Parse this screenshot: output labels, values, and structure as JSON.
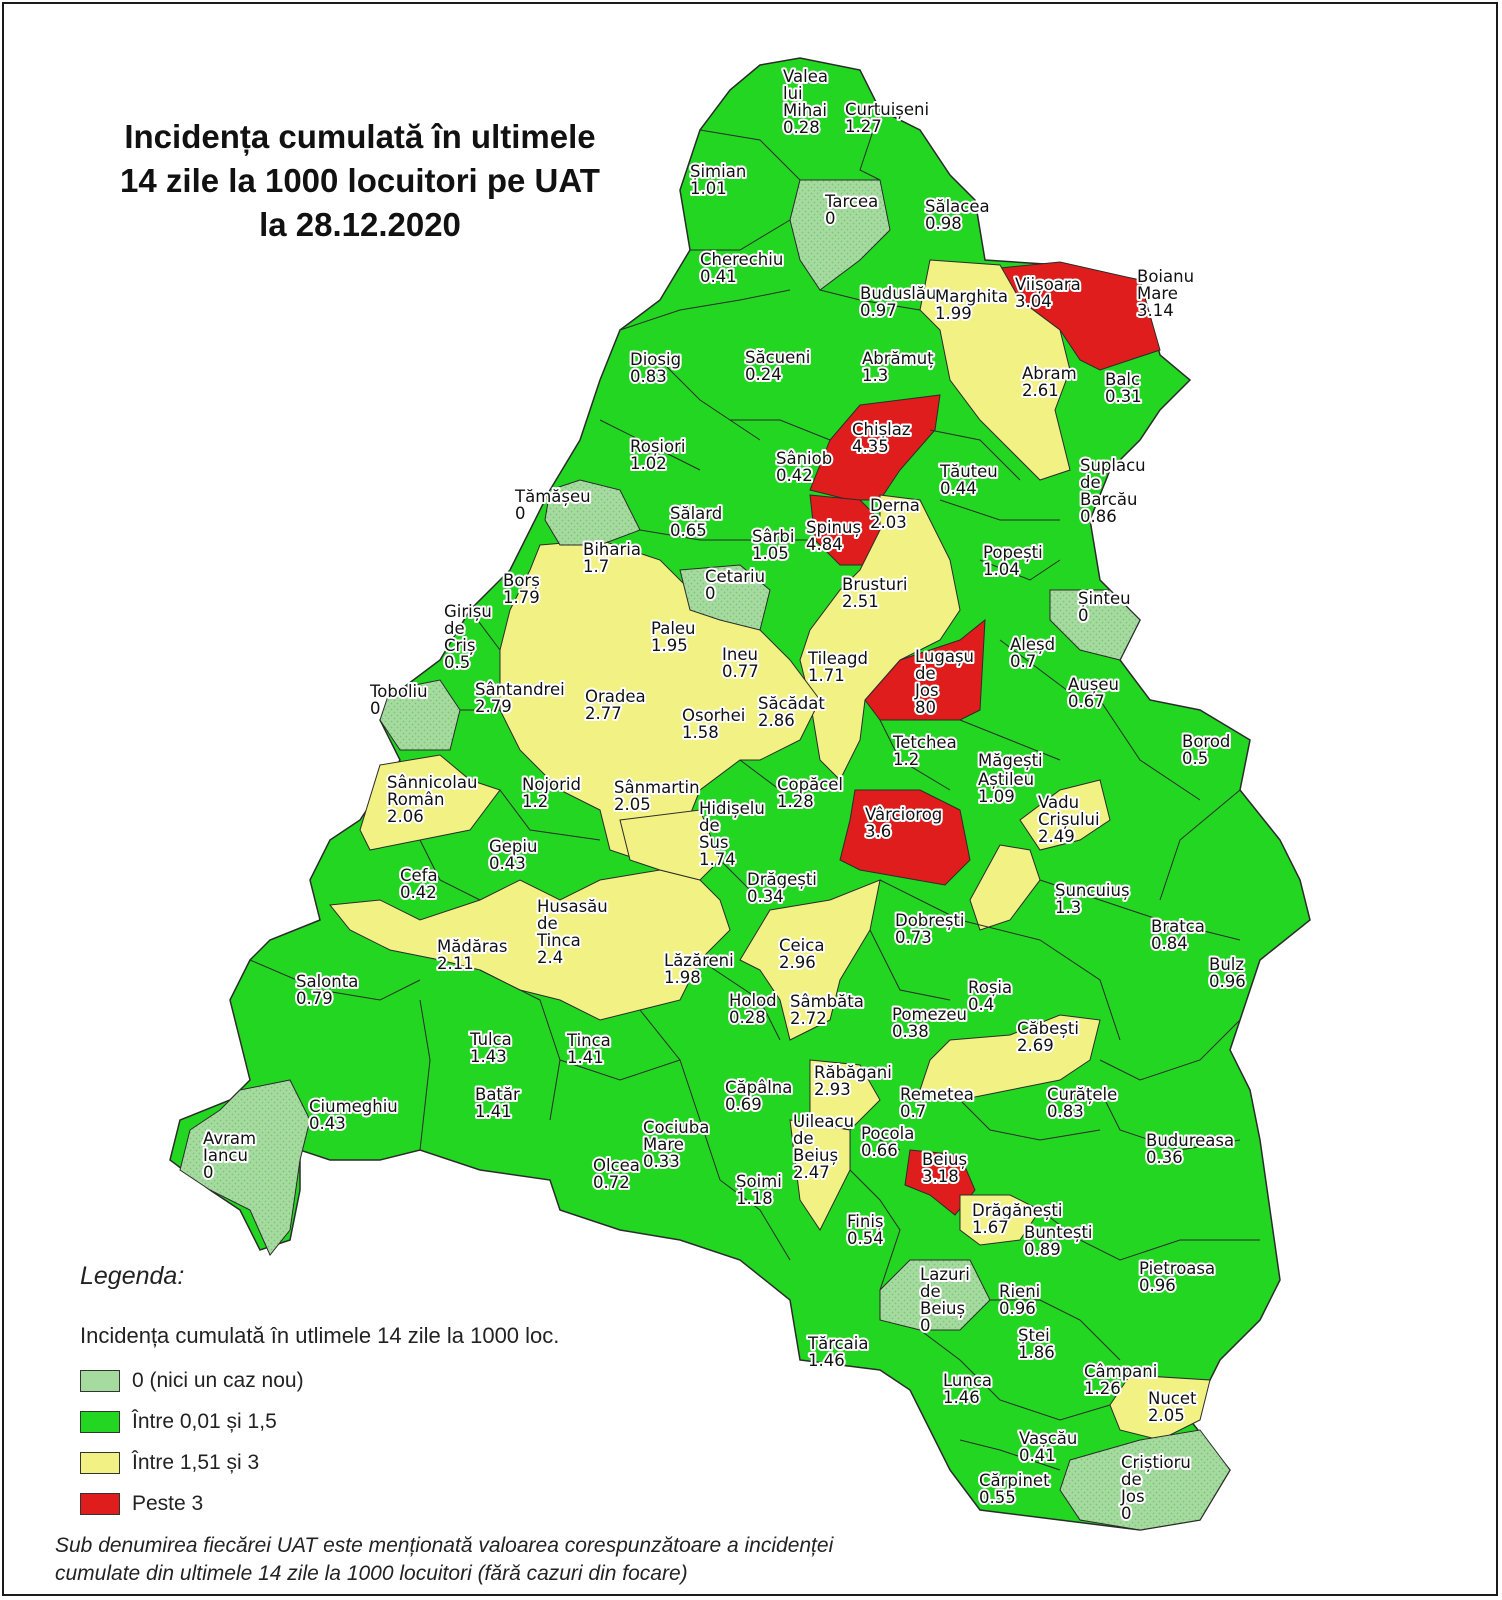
{
  "title": {
    "line1": "Incidența cumulată în ultimele",
    "line2": "14 zile la 1000 locuitori pe UAT",
    "line3": "la 28.12.2020"
  },
  "colors": {
    "zero": "#a6dba0",
    "low": "#22d622",
    "mid": "#f1f184",
    "high": "#e01d1d",
    "border": "#2b2b2b"
  },
  "legend": {
    "heading": "Legenda:",
    "subtitle": "Incidența cumulată în utlimele 14 zile la 1000 loc.",
    "items": [
      {
        "label": "0 (nici un caz nou)",
        "class": "zero"
      },
      {
        "label": "Între 0,01 și 1,5",
        "class": "low"
      },
      {
        "label": "Între 1,51 și 3",
        "class": "mid"
      },
      {
        "label": "Peste 3",
        "class": "high"
      }
    ]
  },
  "note": {
    "line1": "Sub denumirea fiecărei UAT este menționată valoarea corespunzătoare a incidenței",
    "line2": "cumulate din ultimele 14 zile la 1000 locuitori (fără cazuri din focare)"
  },
  "uats": [
    {
      "name": [
        "Valea",
        "lui",
        "Mihai"
      ],
      "value": "0.28",
      "class": "low"
    },
    {
      "name": [
        "Curtuișeni"
      ],
      "value": "1.27",
      "class": "low"
    },
    {
      "name": [
        "Șimian"
      ],
      "value": "1.01",
      "class": "low"
    },
    {
      "name": [
        "Tarcea"
      ],
      "value": "0",
      "class": "zero"
    },
    {
      "name": [
        "Sălacea"
      ],
      "value": "0.98",
      "class": "low"
    },
    {
      "name": [
        "Cherechiu"
      ],
      "value": "0.41",
      "class": "low"
    },
    {
      "name": [
        "Buduslău"
      ],
      "value": "0.97",
      "class": "low"
    },
    {
      "name": [
        "Marghita"
      ],
      "value": "1.99",
      "class": "mid"
    },
    {
      "name": [
        "Viișoara"
      ],
      "value": "3.04",
      "class": "high"
    },
    {
      "name": [
        "Boianu",
        "Mare"
      ],
      "value": "3.14",
      "class": "high"
    },
    {
      "name": [
        "Diosig"
      ],
      "value": "0.83",
      "class": "low"
    },
    {
      "name": [
        "Săcueni"
      ],
      "value": "0.24",
      "class": "low"
    },
    {
      "name": [
        "Abrămuț"
      ],
      "value": "1.3",
      "class": "low"
    },
    {
      "name": [
        "Abram"
      ],
      "value": "2.61",
      "class": "mid"
    },
    {
      "name": [
        "Balc"
      ],
      "value": "0.31",
      "class": "low"
    },
    {
      "name": [
        "Chișlaz"
      ],
      "value": "4.35",
      "class": "high"
    },
    {
      "name": [
        "Roșiori"
      ],
      "value": "1.02",
      "class": "low"
    },
    {
      "name": [
        "Sâniob"
      ],
      "value": "0.42",
      "class": "low"
    },
    {
      "name": [
        "Tăuteu"
      ],
      "value": "0.44",
      "class": "low"
    },
    {
      "name": [
        "Suplacu",
        "de",
        "Barcău"
      ],
      "value": "0.86",
      "class": "low"
    },
    {
      "name": [
        "Tămășeu"
      ],
      "value": "0",
      "class": "zero"
    },
    {
      "name": [
        "Sălard"
      ],
      "value": "0.65",
      "class": "low"
    },
    {
      "name": [
        "Derna"
      ],
      "value": "2.03",
      "class": "mid"
    },
    {
      "name": [
        "Sârbi"
      ],
      "value": "1.05",
      "class": "low"
    },
    {
      "name": [
        "Spinuș"
      ],
      "value": "4.84",
      "class": "high"
    },
    {
      "name": [
        "Popești"
      ],
      "value": "1.04",
      "class": "low"
    },
    {
      "name": [
        "Biharia"
      ],
      "value": "1.7",
      "class": "mid"
    },
    {
      "name": [
        "Cetariu"
      ],
      "value": "0",
      "class": "zero"
    },
    {
      "name": [
        "Borș"
      ],
      "value": "1.79",
      "class": "mid"
    },
    {
      "name": [
        "Brusturi"
      ],
      "value": "2.51",
      "class": "mid"
    },
    {
      "name": [
        "Șinteu"
      ],
      "value": "0",
      "class": "zero"
    },
    {
      "name": [
        "Girișu",
        "de",
        "Criș"
      ],
      "value": "0.5",
      "class": "low"
    },
    {
      "name": [
        "Paleu"
      ],
      "value": "1.95",
      "class": "mid"
    },
    {
      "name": [
        "Ineu"
      ],
      "value": "0.77",
      "class": "low"
    },
    {
      "name": [
        "Tileagd"
      ],
      "value": "1.71",
      "class": "mid"
    },
    {
      "name": [
        "Lugașu",
        "de",
        "Jos"
      ],
      "value": "80",
      "class": "high"
    },
    {
      "name": [
        "Aleșd"
      ],
      "value": "0.7",
      "class": "low"
    },
    {
      "name": [
        "Toboliu"
      ],
      "value": "0",
      "class": "zero"
    },
    {
      "name": [
        "Sântandrei"
      ],
      "value": "2.79",
      "class": "mid"
    },
    {
      "name": [
        "Oradea"
      ],
      "value": "2.77",
      "class": "mid"
    },
    {
      "name": [
        "Aușeu"
      ],
      "value": "0.67",
      "class": "low"
    },
    {
      "name": [
        "Osorhei"
      ],
      "value": "1.58",
      "class": "mid"
    },
    {
      "name": [
        "Săcădat"
      ],
      "value": "2.86",
      "class": "mid"
    },
    {
      "name": [
        "Tetchea"
      ],
      "value": "1.2",
      "class": "low"
    },
    {
      "name": [
        "Borod"
      ],
      "value": "0.5",
      "class": "low"
    },
    {
      "name": [
        "Măgești"
      ],
      "value": "",
      "class": "low"
    },
    {
      "name": [
        "Aștileu"
      ],
      "value": "1.09",
      "class": "low"
    },
    {
      "name": [
        "Sânnicolau",
        "Român"
      ],
      "value": "2.06",
      "class": "mid"
    },
    {
      "name": [
        "Nojorid"
      ],
      "value": "1.2",
      "class": "low"
    },
    {
      "name": [
        "Sânmartin"
      ],
      "value": "2.05",
      "class": "mid"
    },
    {
      "name": [
        "Copăcel"
      ],
      "value": "1.28",
      "class": "low"
    },
    {
      "name": [
        "Hidișelu",
        "de",
        "Sus"
      ],
      "value": "1.74",
      "class": "mid"
    },
    {
      "name": [
        "Vârciorog"
      ],
      "value": "3.6",
      "class": "high"
    },
    {
      "name": [
        "Vadu",
        "Crișului"
      ],
      "value": "2.49",
      "class": "mid"
    },
    {
      "name": [
        "Gepiu"
      ],
      "value": "0.43",
      "class": "low"
    },
    {
      "name": [
        "Cefa"
      ],
      "value": "0.42",
      "class": "low"
    },
    {
      "name": [
        "Drăgești"
      ],
      "value": "0.34",
      "class": "low"
    },
    {
      "name": [
        "Șuncuiuș"
      ],
      "value": "1.3",
      "class": "low"
    },
    {
      "name": [
        "Husasău",
        "de",
        "Tinca"
      ],
      "value": "2.4",
      "class": "mid"
    },
    {
      "name": [
        "Dobrești"
      ],
      "value": "0.73",
      "class": "low"
    },
    {
      "name": [
        "Bratca"
      ],
      "value": "0.84",
      "class": "low"
    },
    {
      "name": [
        "Mădăras"
      ],
      "value": "2.11",
      "class": "mid"
    },
    {
      "name": [
        "Ceica"
      ],
      "value": "2.96",
      "class": "mid"
    },
    {
      "name": [
        "Lăzăreni"
      ],
      "value": "1.98",
      "class": "mid"
    },
    {
      "name": [
        "Bulz"
      ],
      "value": "0.96",
      "class": "low"
    },
    {
      "name": [
        "Salonta"
      ],
      "value": "0.79",
      "class": "low"
    },
    {
      "name": [
        "Roșia"
      ],
      "value": "0.4",
      "class": "low"
    },
    {
      "name": [
        "Holod"
      ],
      "value": "0.28",
      "class": "low"
    },
    {
      "name": [
        "Sâmbăta"
      ],
      "value": "2.72",
      "class": "mid"
    },
    {
      "name": [
        "Pomezeu"
      ],
      "value": "0.38",
      "class": "low"
    },
    {
      "name": [
        "Căbești"
      ],
      "value": "2.69",
      "class": "mid"
    },
    {
      "name": [
        "Tulca"
      ],
      "value": "1.43",
      "class": "low"
    },
    {
      "name": [
        "Tinca"
      ],
      "value": "1.41",
      "class": "low"
    },
    {
      "name": [
        "Răbăgani"
      ],
      "value": "2.93",
      "class": "mid"
    },
    {
      "name": [
        "Căpâlna"
      ],
      "value": "0.69",
      "class": "low"
    },
    {
      "name": [
        "Remetea"
      ],
      "value": "0.7",
      "class": "low"
    },
    {
      "name": [
        "Curățele"
      ],
      "value": "0.83",
      "class": "low"
    },
    {
      "name": [
        "Ciumeghiu"
      ],
      "value": "0.43",
      "class": "low"
    },
    {
      "name": [
        "Batăr"
      ],
      "value": "1.41",
      "class": "low"
    },
    {
      "name": [
        "Uileacu",
        "de",
        "Beiuș"
      ],
      "value": "2.47",
      "class": "mid"
    },
    {
      "name": [
        "Pocola"
      ],
      "value": "0.66",
      "class": "low"
    },
    {
      "name": [
        "Cociuba",
        "Mare"
      ],
      "value": "0.33",
      "class": "low"
    },
    {
      "name": [
        "Budureasa"
      ],
      "value": "0.36",
      "class": "low"
    },
    {
      "name": [
        "Avram",
        "Iancu"
      ],
      "value": "0",
      "class": "zero"
    },
    {
      "name": [
        "Beiuș"
      ],
      "value": "3.18",
      "class": "high"
    },
    {
      "name": [
        "Olcea"
      ],
      "value": "0.72",
      "class": "low"
    },
    {
      "name": [
        "Șoimi"
      ],
      "value": "1.18",
      "class": "low"
    },
    {
      "name": [
        "Drăgănești"
      ],
      "value": "1.67",
      "class": "mid"
    },
    {
      "name": [
        "Finiș"
      ],
      "value": "0.54",
      "class": "low"
    },
    {
      "name": [
        "Buntești"
      ],
      "value": "0.89",
      "class": "low"
    },
    {
      "name": [
        "Pietroasa"
      ],
      "value": "0.96",
      "class": "low"
    },
    {
      "name": [
        "Lazuri",
        "de",
        "Beiuș"
      ],
      "value": "0",
      "class": "zero"
    },
    {
      "name": [
        "Rieni"
      ],
      "value": "0.96",
      "class": "low"
    },
    {
      "name": [
        "Tărcaia"
      ],
      "value": "1.46",
      "class": "low"
    },
    {
      "name": [
        "Ștei"
      ],
      "value": "1.86",
      "class": "mid"
    },
    {
      "name": [
        "Câmpani"
      ],
      "value": "1.26",
      "class": "low"
    },
    {
      "name": [
        "Lunca"
      ],
      "value": "1.46",
      "class": "low"
    },
    {
      "name": [
        "Nucet"
      ],
      "value": "2.05",
      "class": "mid"
    },
    {
      "name": [
        "Vașcău"
      ],
      "value": "0.41",
      "class": "low"
    },
    {
      "name": [
        "Criștioru",
        "de",
        "Jos"
      ],
      "value": "0",
      "class": "zero"
    },
    {
      "name": [
        "Cărpinet"
      ],
      "value": "0.55",
      "class": "low"
    }
  ]
}
